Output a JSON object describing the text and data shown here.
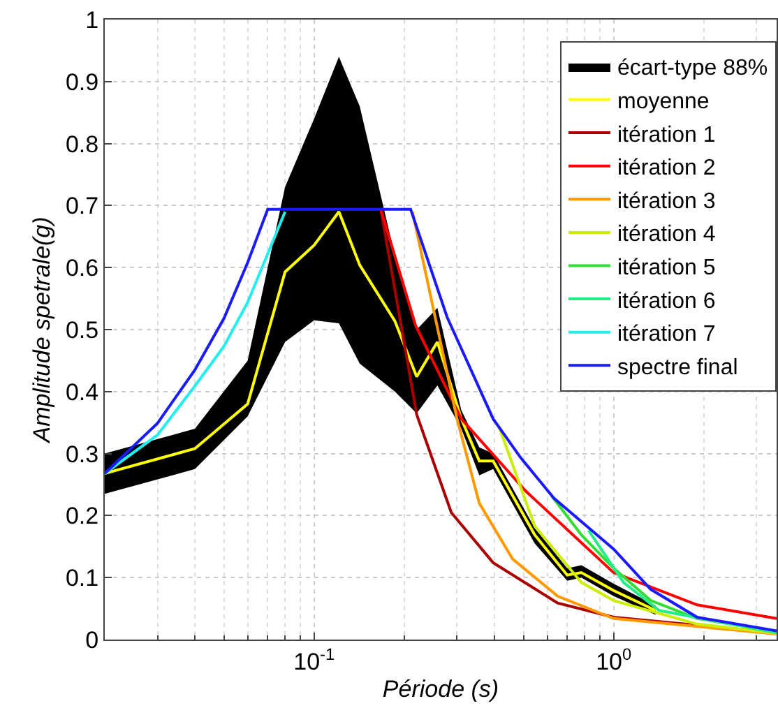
{
  "chart_data": {
    "type": "line",
    "xlabel": "Période (s)",
    "ylabel": "Amplitude spetrale(g)",
    "log": "x",
    "grid": true,
    "legend": "top right",
    "marker": "none",
    "line_style": "solid",
    "xlim": [
      0.02,
      3.5
    ],
    "xticks": [
      {
        "value": 0.1,
        "label": "10$^{-1}$"
      },
      {
        "value": 1,
        "label": "10$^{0}$"
      }
    ],
    "ylim": [
      0,
      1
    ],
    "yticks": [
      0,
      0.1,
      0.2,
      0.3,
      0.4,
      0.5,
      0.6,
      0.7,
      0.8,
      0.9,
      1
    ],
    "series": [
      {
        "name": "écart-type 88%",
        "color": "#000000",
        "x": [
          0.02,
          0.04,
          0.06,
          0.08,
          0.1,
          0.121,
          0.142,
          0.186,
          0.22,
          0.258,
          0.31,
          0.356,
          0.396,
          0.545,
          0.7,
          0.78,
          1.0,
          1.38
        ],
        "values": [
          null,
          null,
          null,
          null,
          null,
          null,
          null,
          null,
          null,
          null,
          null,
          null,
          null,
          null,
          null,
          null,
          null,
          null
        ],
        "lower": [
          0.235,
          0.275,
          0.36,
          0.48,
          0.515,
          0.51,
          0.445,
          0.4,
          0.365,
          0.41,
          0.34,
          0.265,
          0.275,
          0.155,
          0.095,
          0.1,
          0.07,
          0.04
        ],
        "upper": [
          0.3,
          0.34,
          0.45,
          0.73,
          0.84,
          0.94,
          0.86,
          0.62,
          0.5,
          0.535,
          0.37,
          0.31,
          0.3,
          0.18,
          0.115,
          0.12,
          0.09,
          0.055
        ]
      },
      {
        "name": "moyenne",
        "color": "#ffff00",
        "x": [
          0.02,
          0.04,
          0.06,
          0.08,
          0.1,
          0.121,
          0.142,
          0.186,
          0.22,
          0.258,
          0.31,
          0.356,
          0.396,
          0.545,
          0.7,
          0.78,
          1.0,
          1.38
        ],
        "values": [
          0.268,
          0.308,
          0.38,
          0.593,
          0.636,
          0.69,
          0.604,
          0.514,
          0.424,
          0.48,
          0.356,
          0.288,
          0.288,
          0.169,
          0.104,
          0.108,
          0.079,
          0.047
        ]
      },
      {
        "name": "itération 1",
        "color": "#aa0000",
        "x": [
          0.167,
          0.22,
          0.287,
          0.396,
          0.65,
          1.0,
          3.5
        ],
        "values": [
          0.694,
          0.363,
          0.205,
          0.124,
          0.059,
          0.036,
          0.011
        ]
      },
      {
        "name": "itération 2",
        "color": "#ff0000",
        "x": [
          0.167,
          0.218,
          0.31,
          0.51,
          1.0,
          1.9,
          3.5
        ],
        "values": [
          0.694,
          0.507,
          0.356,
          0.239,
          0.108,
          0.056,
          0.034
        ]
      },
      {
        "name": "itération 3",
        "color": "#ff9900",
        "x": [
          0.213,
          0.3,
          0.356,
          0.46,
          0.65,
          1.0,
          3.5
        ],
        "values": [
          0.69,
          0.356,
          0.22,
          0.13,
          0.07,
          0.034,
          0.009
        ]
      },
      {
        "name": "itération 4",
        "color": "#ccee00",
        "x": [
          0.413,
          0.545,
          0.78,
          1.0,
          1.9,
          3.5
        ],
        "values": [
          0.345,
          0.183,
          0.092,
          0.063,
          0.025,
          0.01
        ]
      },
      {
        "name": "itération 5",
        "color": "#33dd33",
        "x": [
          0.62,
          0.78,
          1.0,
          1.33,
          1.9,
          3.5
        ],
        "values": [
          0.232,
          0.169,
          0.115,
          0.063,
          0.034,
          0.013
        ]
      },
      {
        "name": "itération 6",
        "color": "#22ee88",
        "x": [
          0.825,
          1.08,
          1.42,
          3.5
        ],
        "values": [
          0.176,
          0.092,
          0.047,
          0.011
        ]
      },
      {
        "name": "itération 7",
        "color": "#22eeee",
        "x": [
          0.02,
          0.03,
          0.04,
          0.05,
          0.06,
          0.08
        ],
        "values": [
          0.268,
          0.33,
          0.409,
          0.473,
          0.544,
          0.69
        ]
      },
      {
        "name": "spectre final",
        "color": "#1a1aff",
        "x": [
          0.02,
          0.03,
          0.04,
          0.05,
          0.06,
          0.07,
          0.21,
          0.278,
          0.396,
          0.49,
          0.632,
          1.0,
          1.33,
          1.9,
          3.5
        ],
        "values": [
          0.268,
          0.349,
          0.435,
          0.518,
          0.608,
          0.694,
          0.694,
          0.52,
          0.356,
          0.293,
          0.228,
          0.146,
          0.081,
          0.036,
          0.014
        ]
      }
    ]
  }
}
